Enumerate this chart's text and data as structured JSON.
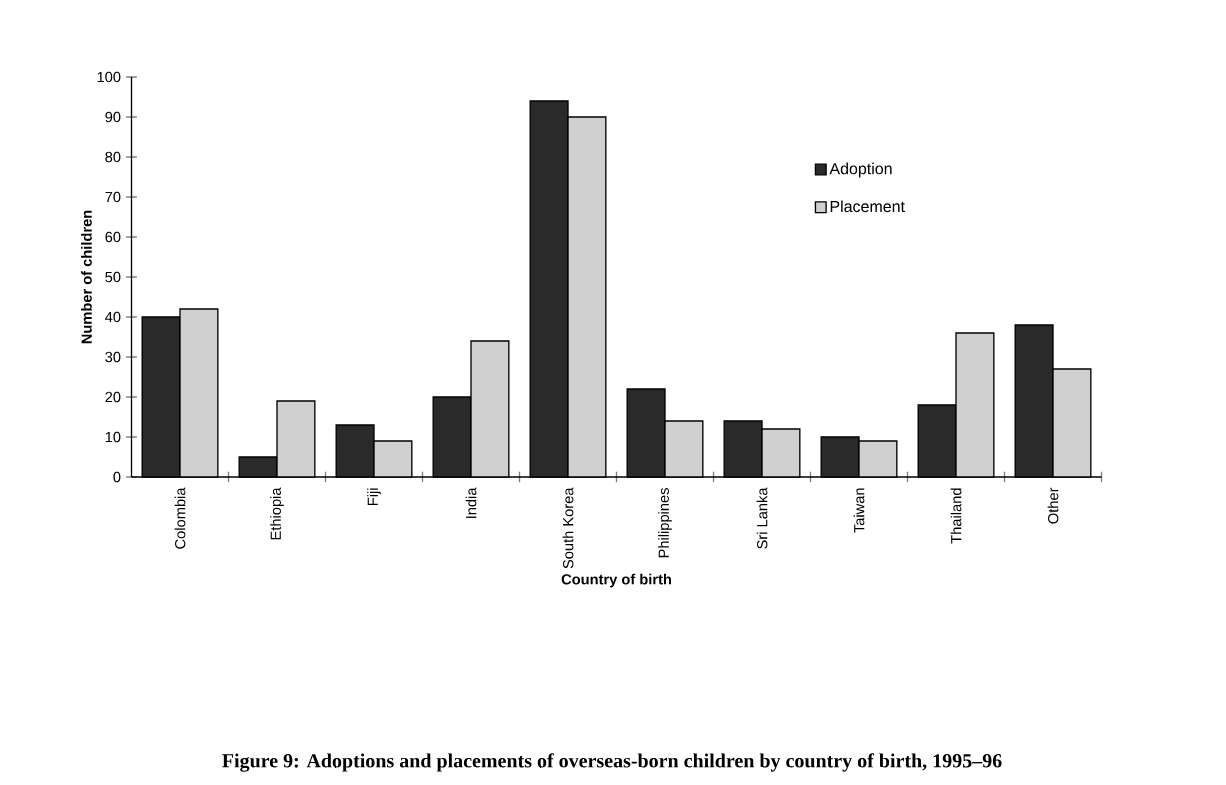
{
  "chart_data": {
    "type": "bar",
    "categories": [
      "Colombia",
      "Ethiopia",
      "Fiji",
      "India",
      "South Korea",
      "Philippines",
      "Sri Lanka",
      "Taiwan",
      "Thailand",
      "Other"
    ],
    "series": [
      {
        "name": "Adoption",
        "color": "#2a2a2a",
        "values": [
          40,
          5,
          13,
          20,
          94,
          22,
          14,
          10,
          18,
          38
        ]
      },
      {
        "name": "Placement",
        "color": "#d0d0d0",
        "values": [
          42,
          19,
          9,
          34,
          90,
          14,
          12,
          9,
          36,
          27
        ]
      }
    ],
    "xlabel": "Country of birth",
    "ylabel": "Number of children",
    "ylim": [
      0,
      100
    ],
    "yticks": [
      0,
      10,
      20,
      30,
      40,
      50,
      60,
      70,
      80,
      90,
      100
    ],
    "legend": "top right",
    "grid": false,
    "annotations": [
      "Figure 9: Adoptions and placements of overseas-born children by country of birth, 1995–96"
    ]
  }
}
